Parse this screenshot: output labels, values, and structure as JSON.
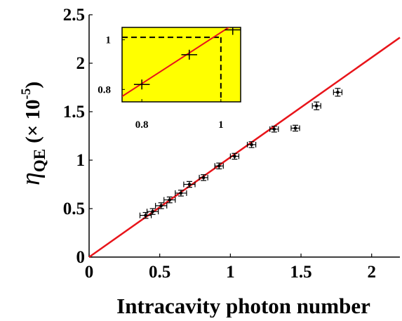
{
  "chart_data": {
    "type": "scatter",
    "xlabel": "Intracavity photon number",
    "ylabel": {
      "symbol": "η",
      "subscript": "QE",
      "scale_text": "(× 10",
      "exponent": "-5",
      "close": ")"
    },
    "xlim": [
      0,
      2.2
    ],
    "ylim": [
      0,
      2.5
    ],
    "xticks": [
      0,
      0.5,
      1,
      1.5,
      2
    ],
    "xtick_labels": [
      "0",
      "0.5",
      "1",
      "1.5",
      "2"
    ],
    "yticks": [
      0,
      0.5,
      1,
      1.5,
      2,
      2.5
    ],
    "ytick_labels": [
      "0",
      "0.5",
      "1",
      "1.5",
      "2",
      "2.5"
    ],
    "grid": false,
    "series": [
      {
        "marker": "dot-with-errorbars",
        "color": "#000000",
        "points": [
          {
            "x": 0.4,
            "y": 0.43,
            "xerr": 0.04,
            "yerr": 0.03
          },
          {
            "x": 0.45,
            "y": 0.47,
            "xerr": 0.04,
            "yerr": 0.03
          },
          {
            "x": 0.51,
            "y": 0.53,
            "xerr": 0.04,
            "yerr": 0.03
          },
          {
            "x": 0.57,
            "y": 0.59,
            "xerr": 0.04,
            "yerr": 0.03
          },
          {
            "x": 0.65,
            "y": 0.66,
            "xerr": 0.04,
            "yerr": 0.03
          },
          {
            "x": 0.71,
            "y": 0.75,
            "xerr": 0.04,
            "yerr": 0.03
          },
          {
            "x": 0.81,
            "y": 0.82,
            "xerr": 0.03,
            "yerr": 0.03
          },
          {
            "x": 0.92,
            "y": 0.94,
            "xerr": 0.03,
            "yerr": 0.03
          },
          {
            "x": 1.03,
            "y": 1.04,
            "xerr": 0.03,
            "yerr": 0.03
          },
          {
            "x": 1.15,
            "y": 1.16,
            "xerr": 0.03,
            "yerr": 0.03
          },
          {
            "x": 1.31,
            "y": 1.32,
            "xerr": 0.03,
            "yerr": 0.03
          },
          {
            "x": 1.46,
            "y": 1.33,
            "xerr": 0.03,
            "yerr": 0.03
          },
          {
            "x": 1.61,
            "y": 1.56,
            "xerr": 0.03,
            "yerr": 0.04
          },
          {
            "x": 1.76,
            "y": 1.7,
            "xerr": 0.03,
            "yerr": 0.04
          }
        ]
      }
    ],
    "fit_line": {
      "color": "#e8141a",
      "x": [
        0,
        2.2
      ],
      "y": [
        0,
        2.265
      ]
    },
    "inset": {
      "background": "#ffff00",
      "xlim": [
        0.75,
        1.05
      ],
      "ylim": [
        0.75,
        1.05
      ],
      "xticks": [
        0.8,
        1
      ],
      "xtick_labels": [
        "0.8",
        "1"
      ],
      "yticks": [
        0.8,
        1
      ],
      "ytick_labels": [
        "0.8",
        "1"
      ],
      "fit_line": {
        "color": "#e8141a",
        "x": [
          0.75,
          1.05
        ],
        "y": [
          0.772,
          1.081
        ]
      },
      "guide": {
        "x": 1.0,
        "y": 1.01,
        "style": "dashed",
        "color": "#000000"
      },
      "points": [
        {
          "x": 0.8,
          "y": 0.82,
          "xerr": 0.02,
          "yerr": 0.02
        },
        {
          "x": 0.92,
          "y": 0.94,
          "xerr": 0.02,
          "yerr": 0.02
        },
        {
          "x": 1.03,
          "y": 1.04,
          "xerr": 0.02,
          "yerr": 0.02
        }
      ]
    }
  }
}
